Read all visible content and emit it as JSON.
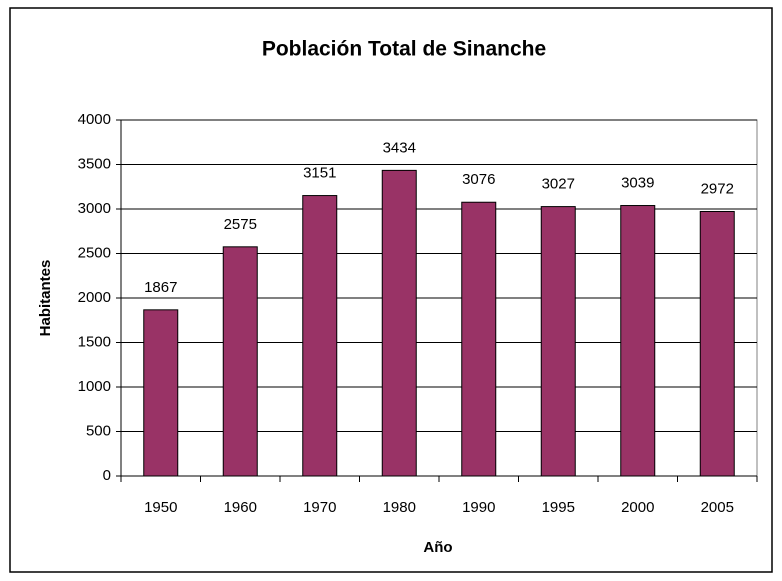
{
  "chart_data": {
    "type": "bar",
    "title": "Población Total de Sinanche",
    "x_label": "Año",
    "y_label": "Habitantes",
    "categories": [
      "1950",
      "1960",
      "1970",
      "1980",
      "1990",
      "1995",
      "2000",
      "2005"
    ],
    "values": [
      1867,
      2575,
      3151,
      3434,
      3076,
      3027,
      3039,
      2972
    ],
    "color": "#993366",
    "ylim": [
      0,
      4000
    ],
    "yticks": [
      0,
      500,
      1000,
      1500,
      2000,
      2500,
      3000,
      3500,
      4000
    ],
    "grid": true
  }
}
